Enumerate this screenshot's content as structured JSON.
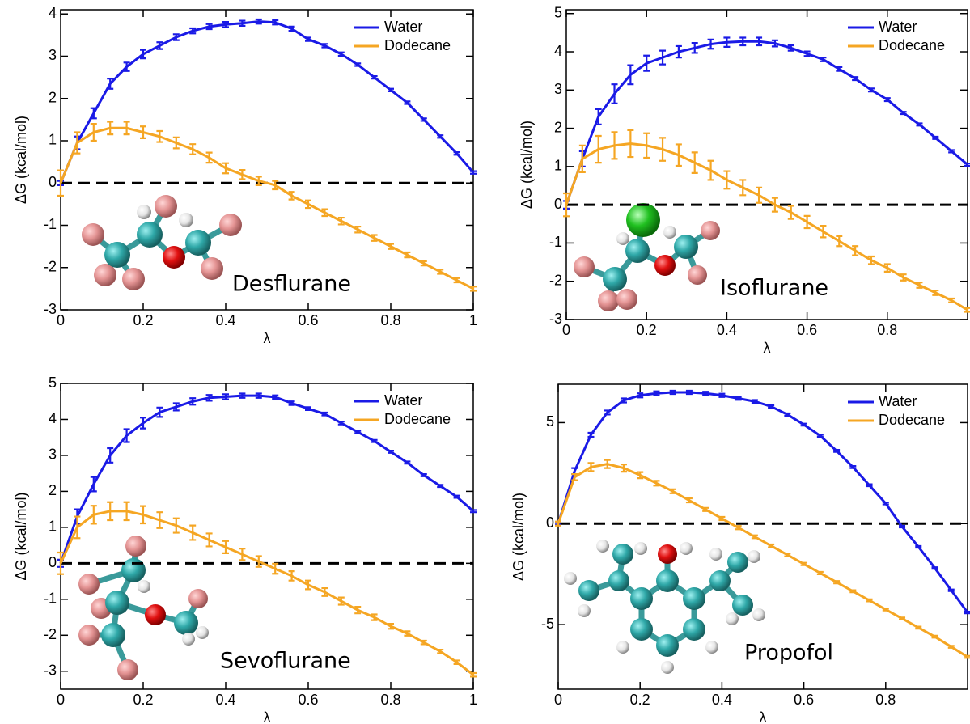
{
  "chart_data": [
    {
      "type": "line",
      "annotation": "Desflurane",
      "xlabel": "λ",
      "ylabel": "ΔG (kcal/mol)",
      "x": [
        0,
        0.04,
        0.08,
        0.12,
        0.16,
        0.2,
        0.24,
        0.28,
        0.32,
        0.36,
        0.4,
        0.44,
        0.48,
        0.52,
        0.56,
        0.6,
        0.64,
        0.68,
        0.72,
        0.76,
        0.8,
        0.84,
        0.88,
        0.92,
        0.96,
        1
      ],
      "xlim": [
        0,
        1
      ],
      "xticks": [
        0,
        0.2,
        0.4,
        0.6,
        0.8,
        1
      ],
      "ylim": [
        -3,
        4.1
      ],
      "yticks": [
        -3,
        -2,
        -1,
        0,
        1,
        2,
        3,
        4
      ],
      "hline": 0,
      "series": [
        {
          "name": "Water",
          "color": "#1a1ae6",
          "values": [
            0,
            0.95,
            1.65,
            2.35,
            2.75,
            3.05,
            3.25,
            3.45,
            3.6,
            3.7,
            3.75,
            3.78,
            3.82,
            3.8,
            3.65,
            3.4,
            3.25,
            3.05,
            2.8,
            2.5,
            2.2,
            1.9,
            1.5,
            1.1,
            0.7,
            0.25
          ],
          "errors": [
            0.05,
            0.15,
            0.12,
            0.12,
            0.1,
            0.1,
            0.08,
            0.07,
            0.06,
            0.06,
            0.06,
            0.06,
            0.05,
            0.05,
            0.05,
            0.04,
            0.04,
            0.04,
            0.03,
            0.03,
            0.03,
            0.03,
            0.03,
            0.03,
            0.03,
            0.03
          ]
        },
        {
          "name": "Dodecane",
          "color": "#f5a623",
          "values": [
            0,
            0.95,
            1.2,
            1.3,
            1.3,
            1.2,
            1.1,
            0.95,
            0.8,
            0.6,
            0.35,
            0.2,
            0.05,
            -0.05,
            -0.3,
            -0.5,
            -0.7,
            -0.9,
            -1.1,
            -1.3,
            -1.5,
            -1.7,
            -1.9,
            -2.1,
            -2.3,
            -2.5
          ],
          "errors": [
            0.3,
            0.25,
            0.2,
            0.15,
            0.15,
            0.14,
            0.13,
            0.13,
            0.12,
            0.12,
            0.12,
            0.11,
            0.1,
            0.1,
            0.09,
            0.09,
            0.08,
            0.08,
            0.07,
            0.07,
            0.06,
            0.06,
            0.05,
            0.05,
            0.05,
            0.05
          ]
        }
      ]
    },
    {
      "type": "line",
      "annotation": "Isoflurane",
      "xlabel": "λ",
      "ylabel": "ΔG (kcal/mol)",
      "x": [
        0,
        0.04,
        0.08,
        0.12,
        0.16,
        0.2,
        0.24,
        0.28,
        0.32,
        0.36,
        0.4,
        0.44,
        0.48,
        0.52,
        0.56,
        0.6,
        0.64,
        0.68,
        0.72,
        0.76,
        0.8,
        0.84,
        0.88,
        0.92,
        0.96,
        1
      ],
      "xlim": [
        0,
        1
      ],
      "xticks": [
        0,
        0.2,
        0.4,
        0.6,
        0.8
      ],
      "ylim": [
        -3,
        5.1
      ],
      "yticks": [
        -3,
        -2,
        -1,
        0,
        1,
        2,
        3,
        4,
        5
      ],
      "hline": 0,
      "series": [
        {
          "name": "Water",
          "color": "#1a1ae6",
          "values": [
            0,
            1.2,
            2.3,
            2.9,
            3.4,
            3.7,
            3.85,
            4.0,
            4.1,
            4.2,
            4.25,
            4.27,
            4.27,
            4.22,
            4.1,
            3.95,
            3.8,
            3.55,
            3.3,
            3.0,
            2.75,
            2.4,
            2.1,
            1.75,
            1.4,
            1.05
          ],
          "errors": [
            0.1,
            0.2,
            0.2,
            0.25,
            0.25,
            0.2,
            0.18,
            0.15,
            0.13,
            0.12,
            0.12,
            0.1,
            0.1,
            0.08,
            0.07,
            0.06,
            0.05,
            0.05,
            0.04,
            0.04,
            0.04,
            0.03,
            0.03,
            0.03,
            0.03,
            0.03
          ]
        },
        {
          "name": "Dodecane",
          "color": "#f5a623",
          "values": [
            0,
            1.2,
            1.45,
            1.55,
            1.6,
            1.55,
            1.45,
            1.3,
            1.1,
            0.9,
            0.65,
            0.45,
            0.25,
            0.0,
            -0.2,
            -0.45,
            -0.7,
            -0.95,
            -1.2,
            -1.45,
            -1.65,
            -1.9,
            -2.1,
            -2.3,
            -2.5,
            -2.75
          ],
          "errors": [
            0.3,
            0.35,
            0.35,
            0.35,
            0.35,
            0.32,
            0.3,
            0.28,
            0.27,
            0.25,
            0.23,
            0.2,
            0.2,
            0.18,
            0.17,
            0.16,
            0.15,
            0.13,
            0.12,
            0.1,
            0.1,
            0.08,
            0.07,
            0.06,
            0.05,
            0.05
          ]
        }
      ]
    },
    {
      "type": "line",
      "annotation": "Sevoflurane",
      "xlabel": "λ",
      "ylabel": "ΔG (kcal/mol)",
      "x": [
        0,
        0.04,
        0.08,
        0.12,
        0.16,
        0.2,
        0.24,
        0.28,
        0.32,
        0.36,
        0.4,
        0.44,
        0.48,
        0.52,
        0.56,
        0.6,
        0.64,
        0.68,
        0.72,
        0.76,
        0.8,
        0.84,
        0.88,
        0.92,
        0.96,
        1
      ],
      "xlim": [
        0,
        1
      ],
      "xticks": [
        0,
        0.2,
        0.4,
        0.6,
        0.8,
        1
      ],
      "ylim": [
        -3.5,
        5
      ],
      "yticks": [
        -3,
        -2,
        -1,
        0,
        1,
        2,
        3,
        4,
        5
      ],
      "hline": 0,
      "series": [
        {
          "name": "Water",
          "color": "#1a1ae6",
          "values": [
            0,
            1.3,
            2.2,
            3.0,
            3.55,
            3.9,
            4.2,
            4.35,
            4.5,
            4.6,
            4.63,
            4.66,
            4.66,
            4.62,
            4.45,
            4.3,
            4.15,
            3.9,
            3.65,
            3.4,
            3.1,
            2.8,
            2.45,
            2.15,
            1.85,
            1.45
          ],
          "errors": [
            0.1,
            0.2,
            0.2,
            0.2,
            0.18,
            0.15,
            0.13,
            0.1,
            0.09,
            0.08,
            0.07,
            0.06,
            0.06,
            0.05,
            0.05,
            0.04,
            0.04,
            0.04,
            0.03,
            0.03,
            0.03,
            0.03,
            0.03,
            0.03,
            0.03,
            0.03
          ]
        },
        {
          "name": "Dodecane",
          "color": "#f5a623",
          "values": [
            0,
            1.0,
            1.35,
            1.45,
            1.45,
            1.35,
            1.2,
            1.05,
            0.85,
            0.65,
            0.45,
            0.25,
            0.05,
            -0.15,
            -0.35,
            -0.6,
            -0.8,
            -1.05,
            -1.3,
            -1.5,
            -1.75,
            -1.95,
            -2.2,
            -2.45,
            -2.75,
            -3.1
          ],
          "errors": [
            0.3,
            0.3,
            0.25,
            0.25,
            0.25,
            0.24,
            0.22,
            0.2,
            0.2,
            0.18,
            0.17,
            0.16,
            0.15,
            0.14,
            0.13,
            0.12,
            0.11,
            0.1,
            0.09,
            0.08,
            0.07,
            0.06,
            0.05,
            0.05,
            0.05,
            0.05
          ]
        }
      ]
    },
    {
      "type": "line",
      "annotation": "Propofol",
      "xlabel": "λ",
      "ylabel": "ΔG (kcal/mol)",
      "x": [
        0,
        0.04,
        0.08,
        0.12,
        0.16,
        0.2,
        0.24,
        0.28,
        0.32,
        0.36,
        0.4,
        0.44,
        0.48,
        0.52,
        0.56,
        0.6,
        0.64,
        0.68,
        0.72,
        0.76,
        0.8,
        0.84,
        0.88,
        0.92,
        0.96,
        1
      ],
      "xlim": [
        0,
        1
      ],
      "xticks": [
        0,
        0.2,
        0.4,
        0.6,
        0.8
      ],
      "ylim": [
        -8.2,
        6.9
      ],
      "yticks": [
        -5,
        0,
        5
      ],
      "hline": 0,
      "series": [
        {
          "name": "Water",
          "color": "#1a1ae6",
          "values": [
            0,
            2.6,
            4.4,
            5.5,
            6.1,
            6.35,
            6.45,
            6.5,
            6.5,
            6.45,
            6.35,
            6.2,
            6.05,
            5.8,
            5.4,
            4.9,
            4.35,
            3.6,
            2.8,
            1.9,
            1.0,
            -0.15,
            -1.15,
            -2.2,
            -3.3,
            -4.4
          ],
          "errors": [
            0.05,
            0.15,
            0.1,
            0.1,
            0.1,
            0.1,
            0.1,
            0.08,
            0.08,
            0.08,
            0.08,
            0.07,
            0.07,
            0.06,
            0.06,
            0.05,
            0.05,
            0.05,
            0.05,
            0.05,
            0.05,
            0.04,
            0.04,
            0.04,
            0.04,
            0.04
          ]
        },
        {
          "name": "Dodecane",
          "color": "#f5a623",
          "values": [
            0,
            2.3,
            2.8,
            2.95,
            2.75,
            2.4,
            2.0,
            1.6,
            1.15,
            0.7,
            0.25,
            -0.2,
            -0.65,
            -1.1,
            -1.55,
            -2.0,
            -2.45,
            -2.9,
            -3.35,
            -3.8,
            -4.25,
            -4.7,
            -5.15,
            -5.6,
            -6.1,
            -6.6
          ],
          "errors": [
            0.1,
            0.15,
            0.2,
            0.2,
            0.18,
            0.15,
            0.12,
            0.1,
            0.1,
            0.08,
            0.08,
            0.08,
            0.07,
            0.07,
            0.07,
            0.06,
            0.06,
            0.06,
            0.05,
            0.05,
            0.05,
            0.05,
            0.05,
            0.05,
            0.05,
            0.05
          ]
        }
      ]
    }
  ]
}
